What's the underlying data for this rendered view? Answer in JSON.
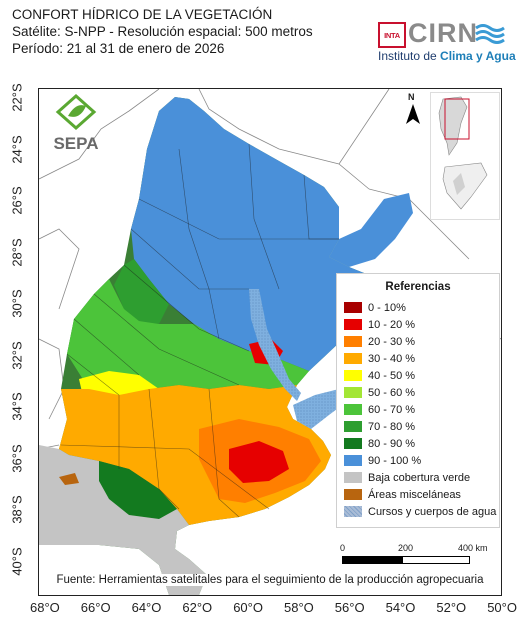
{
  "header": {
    "title": "CONFORT HÍDRICO DE LA VEGETACIÓN",
    "satellite": "Satélite: S-NPP - Resolución espacial: 500 metros",
    "period": "Período: 21 al 31 de enero de 2026"
  },
  "logos": {
    "inta": "INTA",
    "cirn": "CIRN",
    "institute_prefix": "Instituto de ",
    "institute_highlight": "Clima y Agua",
    "sepa": "SEPA"
  },
  "north_arrow": {
    "label": "N"
  },
  "axes": {
    "latitude_labels": [
      "22°S",
      "24°S",
      "26°S",
      "28°S",
      "30°S",
      "32°S",
      "34°S",
      "36°S",
      "38°S",
      "40°S"
    ],
    "longitude_labels": [
      "68°O",
      "66°O",
      "64°O",
      "62°O",
      "60°O",
      "58°O",
      "56°O",
      "54°O",
      "52°O",
      "50°O"
    ]
  },
  "legend": {
    "title": "Referencias",
    "items": [
      {
        "label": "0 - 10%",
        "color": "#a80000"
      },
      {
        "label": "10 - 20 %",
        "color": "#e60000"
      },
      {
        "label": "20 - 30 %",
        "color": "#ff7f00"
      },
      {
        "label": "30 - 40 %",
        "color": "#ffaa00"
      },
      {
        "label": "40 - 50 %",
        "color": "#ffff00"
      },
      {
        "label": "50 - 60 %",
        "color": "#a3e635"
      },
      {
        "label": "60 - 70 %",
        "color": "#4cc43a"
      },
      {
        "label": "70 - 80 %",
        "color": "#2e9e30"
      },
      {
        "label": "80 - 90 %",
        "color": "#137a1f"
      },
      {
        "label": "90 - 100 %",
        "color": "#4a90d9"
      },
      {
        "label": "Baja cobertura verde",
        "color": "#c4c4c4"
      },
      {
        "label": "Áreas misceláneas",
        "color": "#b8650f"
      },
      {
        "label": "Cursos y cuerpos de agua",
        "color": "#a9bcd6"
      }
    ]
  },
  "scale_bar": {
    "labels": [
      "0",
      "200",
      "400 km"
    ]
  },
  "source": "Fuente: Herramientas satelitales para el seguimiento de la producción agropecuaria"
}
